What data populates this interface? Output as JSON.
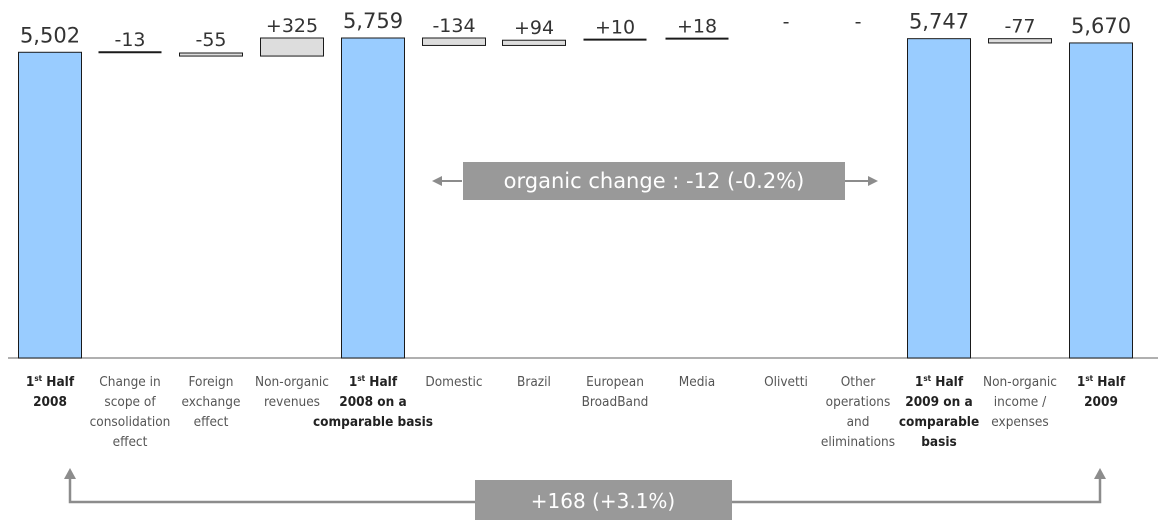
{
  "chart_data": {
    "type": "waterfall",
    "categories": [
      "1st Half 2008",
      "Change in scope of consolidation effect",
      "Foreign exchange effect",
      "Non-organic revenues",
      "1st Half 2008 on a comparable basis",
      "Domestic",
      "Brazil",
      "European BroadBand",
      "Media",
      "Olivetti",
      "Other operations and eliminations",
      "1st Half 2009 on a comparable basis",
      "Non-organic income / expenses",
      "1st Half 2009"
    ],
    "values": [
      5502,
      -13,
      -55,
      325,
      5759,
      -134,
      94,
      10,
      18,
      null,
      null,
      5747,
      -77,
      5670
    ],
    "value_labels": [
      "5,502",
      "-13",
      "-55",
      "+325",
      "5,759",
      "-134",
      "+94",
      "+10",
      "+18",
      "-",
      "-",
      "5,747",
      "-77",
      "5,670"
    ],
    "bar_kind": [
      "total",
      "delta",
      "delta",
      "delta",
      "total",
      "delta",
      "delta",
      "delta",
      "delta",
      "delta",
      "delta",
      "total",
      "delta",
      "total"
    ],
    "axis_labels": [
      {
        "lines": [
          [
            "1",
            "st",
            " Half"
          ],
          [
            "2008"
          ]
        ],
        "bold": true
      },
      {
        "lines": [
          [
            "Change in"
          ],
          [
            "scope of"
          ],
          [
            "consolidation"
          ],
          [
            "effect"
          ]
        ],
        "bold": false
      },
      {
        "lines": [
          [
            "Foreign"
          ],
          [
            "exchange"
          ],
          [
            "effect"
          ]
        ],
        "bold": false
      },
      {
        "lines": [
          [
            "Non-organic"
          ],
          [
            "revenues"
          ]
        ],
        "bold": false
      },
      {
        "lines": [
          [
            "1",
            "st",
            " Half"
          ],
          [
            "2008 on a"
          ],
          [
            "comparable basis"
          ]
        ],
        "bold": true
      },
      {
        "lines": [
          [
            "Domestic"
          ]
        ],
        "bold": false
      },
      {
        "lines": [
          [
            "Brazil"
          ]
        ],
        "bold": false
      },
      {
        "lines": [
          [
            "European"
          ],
          [
            "BroadBand"
          ]
        ],
        "bold": false
      },
      {
        "lines": [
          [
            "Media"
          ]
        ],
        "bold": false
      },
      {
        "lines": [
          [
            "Olivetti"
          ]
        ],
        "bold": false
      },
      {
        "lines": [
          [
            "Other"
          ],
          [
            "operations"
          ],
          [
            "and"
          ],
          [
            "eliminations"
          ]
        ],
        "bold": false
      },
      {
        "lines": [
          [
            "1",
            "st",
            " Half"
          ],
          [
            "2009 on a"
          ],
          [
            "comparable"
          ],
          [
            "basis"
          ]
        ],
        "bold": true
      },
      {
        "lines": [
          [
            "Non-organic"
          ],
          [
            "income /"
          ],
          [
            "expenses"
          ]
        ],
        "bold": false
      },
      {
        "lines": [
          [
            "1",
            "st",
            " Half"
          ],
          [
            "2009"
          ]
        ],
        "bold": true
      }
    ],
    "annotations": [
      {
        "text": "organic change : -12 (-0.2%)",
        "from_category": 5,
        "to_category": 10
      },
      {
        "text": "+168 (+3.1%)",
        "from_category": 0,
        "to_category": 13
      }
    ],
    "colors": {
      "total_fill": "#99ccff",
      "delta_fill": "#dddddd",
      "bar_stroke": "#1a1a1a",
      "annotation_box": "#999999",
      "annotation_arrow": "#8c8c8c",
      "baseline": "#808080"
    }
  }
}
